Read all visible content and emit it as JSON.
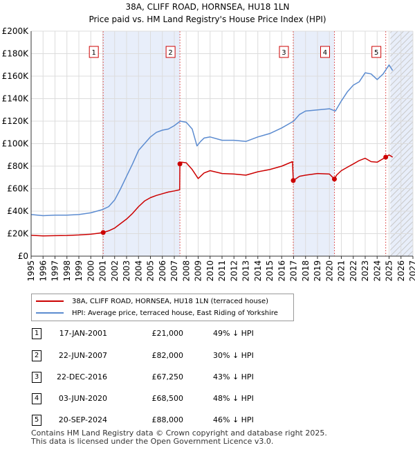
{
  "header": {
    "title": "38A, CLIFF ROAD, HORNSEA, HU18 1LN",
    "subtitle": "Price paid vs. HM Land Registry's House Price Index (HPI)"
  },
  "chart_data": {
    "type": "line",
    "title": "38A, CLIFF ROAD, HORNSEA, HU18 1LN",
    "subtitle": "Price paid vs. HM Land Registry's House Price Index (HPI)",
    "xlabel": "",
    "ylabel": "",
    "xlim": [
      1995,
      2027
    ],
    "ylim": [
      0,
      200000
    ],
    "y_ticks": [
      0,
      20000,
      40000,
      60000,
      80000,
      100000,
      120000,
      140000,
      160000,
      180000,
      200000
    ],
    "y_tick_labels": [
      "£0",
      "£20K",
      "£40K",
      "£60K",
      "£80K",
      "£100K",
      "£120K",
      "£140K",
      "£160K",
      "£180K",
      "£200K"
    ],
    "x_ticks": [
      1995,
      1996,
      1997,
      1998,
      1999,
      2000,
      2001,
      2002,
      2003,
      2004,
      2005,
      2006,
      2007,
      2008,
      2009,
      2010,
      2011,
      2012,
      2013,
      2014,
      2015,
      2016,
      2017,
      2018,
      2019,
      2020,
      2021,
      2022,
      2023,
      2024,
      2025,
      2026,
      2027
    ],
    "x_tick_labels": [
      "1995",
      "1996",
      "1997",
      "1998",
      "1999",
      "2000",
      "2001",
      "2002",
      "2003",
      "2004",
      "2005",
      "2006",
      "2007",
      "2008",
      "2009",
      "2010",
      "2011",
      "2012",
      "2013",
      "2014",
      "2015",
      "2016",
      "2017",
      "2018",
      "2019",
      "2020",
      "2021",
      "2022",
      "2023",
      "2024",
      "2025",
      "2026",
      "2027"
    ],
    "grid": true,
    "legend_position": "below-chart",
    "shaded_periods": [
      [
        2001.04,
        2007.47
      ],
      [
        2016.97,
        2020.42
      ],
      [
        2025.1,
        2027
      ]
    ],
    "hatched_period": [
      2025.1,
      2027
    ],
    "series": [
      {
        "name": "38A, CLIFF ROAD, HORNSEA, HU18 1LN (terraced house)",
        "color": "#cc0000",
        "x": [
          1995,
          1996,
          1997,
          1998,
          1999,
          2000,
          2000.5,
          2001.04,
          2001.5,
          2002,
          2002.5,
          2003,
          2003.5,
          2004,
          2004.5,
          2005,
          2005.5,
          2006,
          2006.5,
          2007,
          2007.45,
          2007.47,
          2007.6,
          2008,
          2008.5,
          2009,
          2009.5,
          2010,
          2011,
          2012,
          2013,
          2014,
          2015,
          2016,
          2016.9,
          2016.97,
          2017.5,
          2018,
          2019,
          2020,
          2020.42,
          2020.6,
          2021,
          2021.5,
          2022,
          2022.5,
          2023,
          2023.5,
          2024,
          2024.72,
          2025,
          2025.3
        ],
        "y": [
          18500,
          18000,
          18200,
          18400,
          18800,
          19500,
          20200,
          21000,
          22500,
          25000,
          29000,
          33000,
          38000,
          44000,
          49000,
          52000,
          54000,
          55500,
          57000,
          58000,
          59000,
          82000,
          83500,
          83000,
          77000,
          69000,
          74000,
          76000,
          73500,
          73000,
          72000,
          75000,
          77000,
          80000,
          84000,
          67250,
          71000,
          72000,
          73500,
          73000,
          68500,
          72000,
          76000,
          79000,
          82000,
          85000,
          87000,
          84000,
          83500,
          88000,
          90000,
          88000
        ]
      },
      {
        "name": "HPI: Average price, terraced house, East Riding of Yorkshire",
        "color": "#5b8bd0",
        "x": [
          1995,
          1996,
          1997,
          1998,
          1999,
          2000,
          2000.5,
          2001,
          2001.5,
          2002,
          2002.5,
          2003,
          2003.5,
          2004,
          2004.5,
          2005,
          2005.5,
          2006,
          2006.5,
          2007,
          2007.5,
          2008,
          2008.5,
          2008.9,
          2009.2,
          2009.5,
          2010,
          2011,
          2012,
          2013,
          2014,
          2015,
          2016,
          2017,
          2017.5,
          2018,
          2019,
          2020,
          2020.5,
          2021,
          2021.5,
          2022,
          2022.5,
          2023,
          2023.5,
          2024,
          2024.5,
          2025,
          2025.3
        ],
        "y": [
          37000,
          36000,
          36500,
          36500,
          37000,
          38500,
          40000,
          41500,
          44000,
          50000,
          60000,
          71000,
          82000,
          94000,
          100000,
          106000,
          110000,
          112000,
          113000,
          116000,
          120000,
          119000,
          113000,
          98000,
          102000,
          105000,
          106000,
          103000,
          103000,
          102000,
          106000,
          109000,
          114000,
          120000,
          126000,
          129000,
          130000,
          131000,
          129000,
          138000,
          146000,
          152000,
          155000,
          163000,
          162000,
          157000,
          162000,
          170000,
          165000
        ]
      }
    ],
    "sale_markers": [
      {
        "label": "1",
        "x": 2001.04,
        "y": 21000
      },
      {
        "label": "2",
        "x": 2007.47,
        "y": 82000
      },
      {
        "label": "3",
        "x": 2016.97,
        "y": 67250
      },
      {
        "label": "4",
        "x": 2020.42,
        "y": 68500
      },
      {
        "label": "5",
        "x": 2024.72,
        "y": 88000
      }
    ]
  },
  "legend": {
    "property_label": "38A, CLIFF ROAD, HORNSEA, HU18 1LN (terraced house)",
    "hpi_label": "HPI: Average price, terraced house, East Riding of Yorkshire",
    "property_color": "#cc0000",
    "hpi_color": "#5b8bd0"
  },
  "sales": [
    {
      "num": "1",
      "date": "17-JAN-2001",
      "price": "£21,000",
      "hpi": "49% ↓ HPI"
    },
    {
      "num": "2",
      "date": "22-JUN-2007",
      "price": "£82,000",
      "hpi": "30% ↓ HPI"
    },
    {
      "num": "3",
      "date": "22-DEC-2016",
      "price": "£67,250",
      "hpi": "43% ↓ HPI"
    },
    {
      "num": "4",
      "date": "03-JUN-2020",
      "price": "£68,500",
      "hpi": "48% ↓ HPI"
    },
    {
      "num": "5",
      "date": "20-SEP-2024",
      "price": "£88,000",
      "hpi": "46% ↓ HPI"
    }
  ],
  "footer": {
    "line1": "Contains HM Land Registry data © Crown copyright and database right 2025.",
    "line2": "This data is licensed under the Open Government Licence v3.0."
  }
}
